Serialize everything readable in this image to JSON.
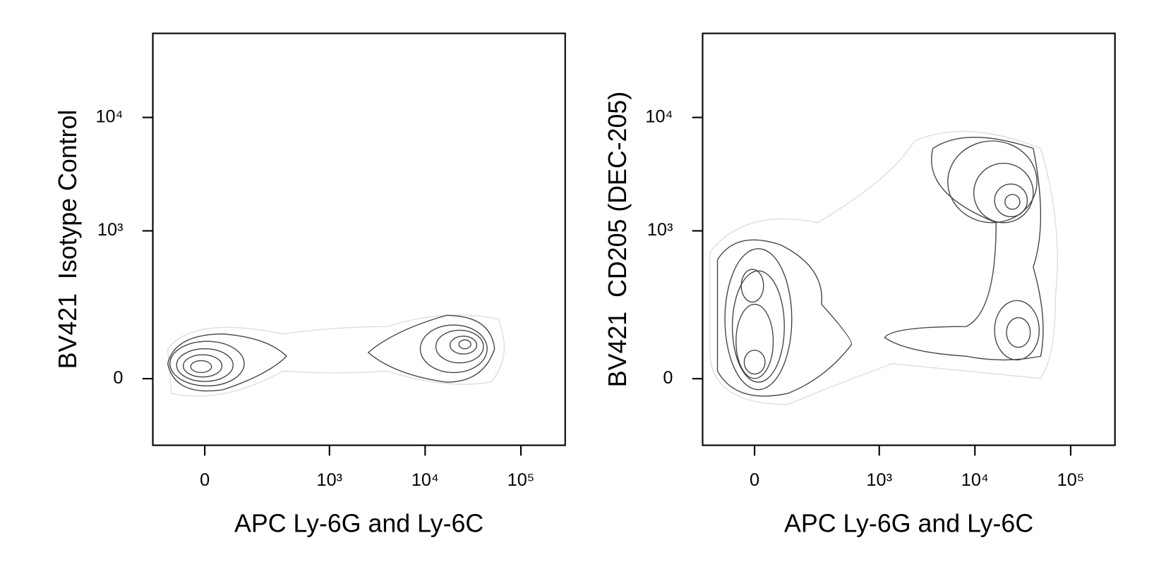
{
  "chart_data": [
    {
      "type": "contour",
      "scale": "biexponential",
      "xlabel": "APC Ly-6G and Ly-6C",
      "ylabel": "BV421  Isotype Control",
      "xlim": [
        -160,
        290000
      ],
      "ylim": [
        -180,
        55000
      ],
      "xticks": [
        0,
        {
          "value": 1000,
          "label": "10³"
        },
        {
          "value": 10000,
          "label": "10⁴"
        },
        {
          "value": 100000,
          "label": "10⁵"
        }
      ],
      "yticks": [
        0,
        {
          "value": 1000,
          "label": "10³"
        },
        {
          "value": 10000,
          "label": "10⁴"
        }
      ]
    },
    {
      "type": "contour",
      "scale": "biexponential",
      "xlabel": "APC Ly-6G and Ly-6C",
      "ylabel": "BV421  CD205 (DEC-205)",
      "xlim": [
        -160,
        290000
      ],
      "ylim": [
        -180,
        55000
      ],
      "xticks": [
        0,
        {
          "value": 1000,
          "label": "10³"
        },
        {
          "value": 10000,
          "label": "10⁴"
        },
        {
          "value": 100000,
          "label": "10⁵"
        }
      ],
      "yticks": [
        0,
        {
          "value": 1000,
          "label": "10³"
        },
        {
          "value": 10000,
          "label": "10⁴"
        }
      ]
    }
  ]
}
